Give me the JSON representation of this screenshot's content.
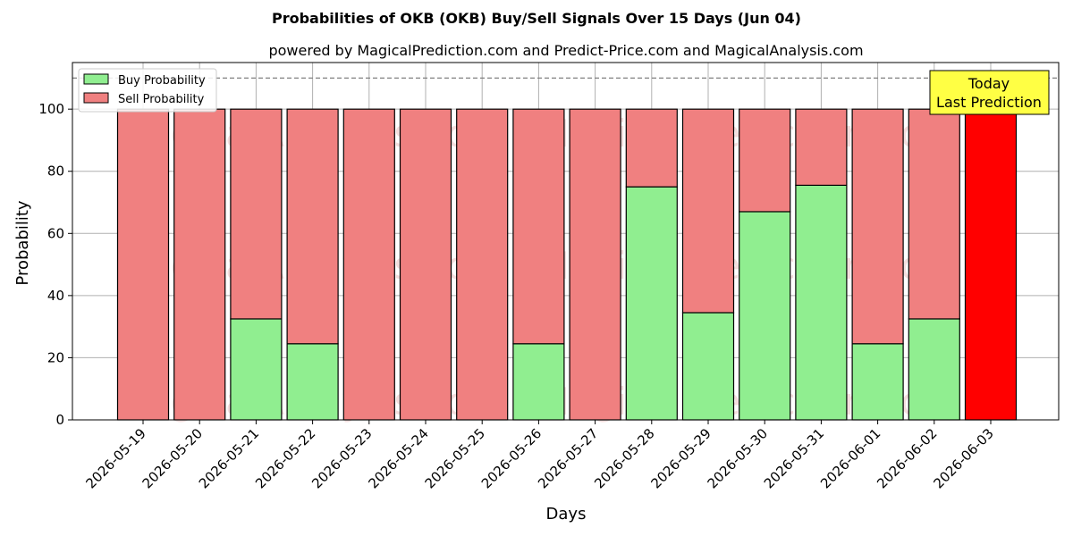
{
  "chart_data": {
    "type": "bar",
    "stacked": true,
    "title": "Probabilities of OKB (OKB) Buy/Sell Signals Over 15 Days (Jun 04)",
    "subtitle": "powered by MagicalPrediction.com and Predict-Price.com and MagicalAnalysis.com",
    "xlabel": "Days",
    "ylabel": "Probability",
    "ylim": [
      0,
      115
    ],
    "yticks": [
      0,
      20,
      40,
      60,
      80,
      100
    ],
    "grid": true,
    "legend_placement": "top-left",
    "reference_line": 110,
    "categories": [
      "2026-05-19",
      "2026-05-20",
      "2026-05-21",
      "2026-05-22",
      "2026-05-23",
      "2026-05-24",
      "2026-05-25",
      "2026-05-26",
      "2026-05-27",
      "2026-05-28",
      "2026-05-29",
      "2026-05-30",
      "2026-05-31",
      "2026-06-01",
      "2026-06-02",
      "2026-06-03"
    ],
    "series": [
      {
        "name": "Buy Probability",
        "color": "#90ee90",
        "values": [
          0,
          0,
          32.5,
          24.5,
          0,
          0,
          0,
          24.5,
          0,
          75,
          34.5,
          67,
          75.5,
          24.5,
          32.5,
          0
        ]
      },
      {
        "name": "Sell Probability",
        "color": "#f08080",
        "values": [
          100,
          100,
          67.5,
          75.5,
          100,
          100,
          100,
          75.5,
          100,
          25,
          65.5,
          33,
          24.5,
          75.5,
          67.5,
          100
        ]
      }
    ],
    "highlight": {
      "index": 15,
      "color": "#ff0000"
    },
    "annotation": {
      "line1": "Today",
      "line2": "Last Prediction",
      "background": "#ffff44"
    },
    "watermarks": [
      "MagicalAnalysis.com",
      "MagicalPrediction.com"
    ]
  }
}
